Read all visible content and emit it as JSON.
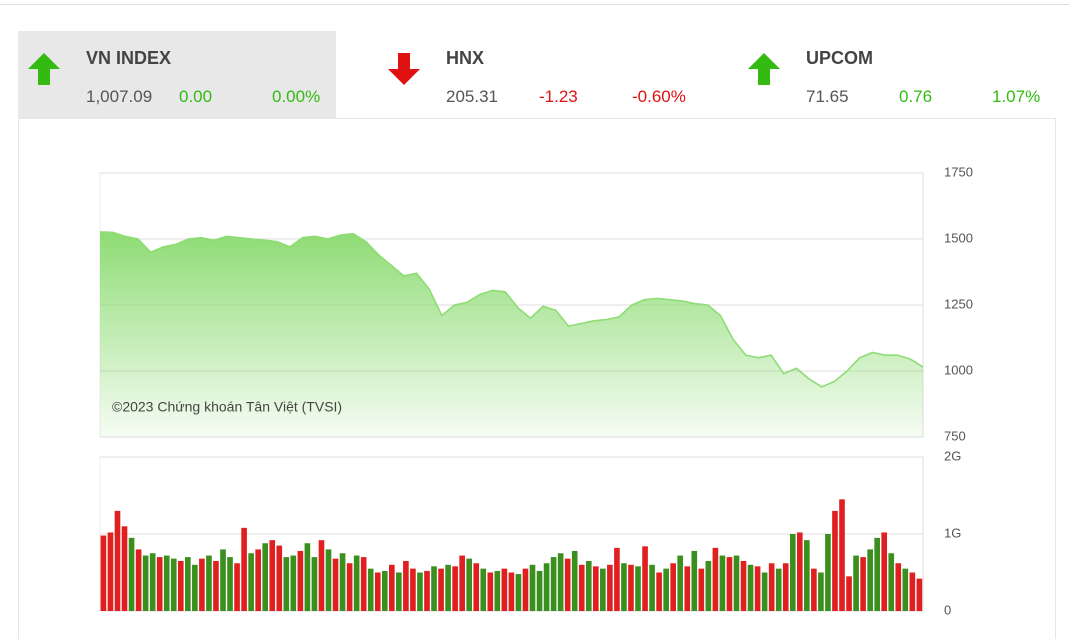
{
  "tickers": [
    {
      "name": "VN INDEX",
      "value": "1,007.09",
      "change": "0.00",
      "percent": "0.00%"
    },
    {
      "name": "HNX",
      "value": "205.31",
      "change": "-1.23",
      "percent": "-0.60%"
    },
    {
      "name": "UPCOM",
      "value": "71.65",
      "change": "0.76",
      "percent": "1.07%"
    }
  ],
  "watermark": "©2023 Chứng khoán Tân Việt (TVSI)",
  "chart_data": [
    {
      "type": "area",
      "color": "#8edc74",
      "ylim": [
        750,
        1750
      ],
      "yticks": [
        750,
        1000,
        1250,
        1500,
        1750
      ],
      "grid": true,
      "values": [
        1527,
        1525,
        1510,
        1500,
        1450,
        1470,
        1480,
        1500,
        1505,
        1495,
        1510,
        1505,
        1500,
        1495,
        1490,
        1470,
        1505,
        1510,
        1500,
        1515,
        1520,
        1490,
        1440,
        1400,
        1360,
        1370,
        1310,
        1210,
        1250,
        1260,
        1290,
        1305,
        1300,
        1240,
        1200,
        1245,
        1230,
        1170,
        1180,
        1190,
        1195,
        1205,
        1250,
        1270,
        1275,
        1270,
        1265,
        1255,
        1250,
        1210,
        1120,
        1060,
        1050,
        1060,
        990,
        1010,
        970,
        940,
        960,
        1000,
        1050,
        1070,
        1060,
        1060,
        1045,
        1015
      ]
    },
    {
      "type": "bar",
      "ylim": [
        0,
        2
      ],
      "yticks": [
        0,
        {
          "value": 1,
          "label": "1G"
        },
        {
          "value": 2,
          "label": "2G"
        }
      ],
      "grid": true,
      "values": [
        0.98,
        1.02,
        1.3,
        1.1,
        0.95,
        0.8,
        0.72,
        0.75,
        0.7,
        0.72,
        0.68,
        0.65,
        0.7,
        0.6,
        0.68,
        0.72,
        0.65,
        0.8,
        0.7,
        0.62,
        1.08,
        0.75,
        0.8,
        0.88,
        0.92,
        0.85,
        0.7,
        0.72,
        0.78,
        0.88,
        0.7,
        0.92,
        0.8,
        0.68,
        0.75,
        0.62,
        0.72,
        0.7,
        0.55,
        0.5,
        0.52,
        0.6,
        0.5,
        0.65,
        0.55,
        0.5,
        0.52,
        0.58,
        0.55,
        0.6,
        0.58,
        0.72,
        0.68,
        0.62,
        0.55,
        0.5,
        0.52,
        0.55,
        0.5,
        0.48,
        0.55,
        0.6,
        0.52,
        0.62,
        0.7,
        0.75,
        0.68,
        0.78,
        0.6,
        0.65,
        0.58,
        0.55,
        0.6,
        0.82,
        0.62,
        0.6,
        0.58,
        0.84,
        0.6,
        0.5,
        0.55,
        0.62,
        0.72,
        0.58,
        0.78,
        0.55,
        0.65,
        0.82,
        0.72,
        0.7,
        0.72,
        0.65,
        0.6,
        0.58,
        0.5,
        0.62,
        0.55,
        0.62,
        1.0,
        1.02,
        0.92,
        0.55,
        0.5,
        1.0,
        1.3,
        1.45,
        0.45,
        0.72,
        0.7,
        0.8,
        0.95,
        1.02,
        0.75,
        0.62,
        0.55,
        0.5,
        0.42
      ],
      "colors": [
        "#e02020",
        "#e02020",
        "#e02020",
        "#e02020",
        "#3a8f1e",
        "#e02020",
        "#3a8f1e",
        "#3a8f1e",
        "#e02020",
        "#3a8f1e",
        "#3a8f1e",
        "#e02020",
        "#3a8f1e",
        "#3a8f1e",
        "#e02020",
        "#3a8f1e",
        "#e02020",
        "#3a8f1e",
        "#3a8f1e",
        "#e02020",
        "#e02020",
        "#3a8f1e",
        "#e02020",
        "#3a8f1e",
        "#e02020",
        "#e02020",
        "#3a8f1e",
        "#3a8f1e",
        "#e02020",
        "#3a8f1e",
        "#3a8f1e",
        "#e02020",
        "#3a8f1e",
        "#e02020",
        "#3a8f1e",
        "#e02020",
        "#3a8f1e",
        "#e02020",
        "#3a8f1e",
        "#e02020",
        "#3a8f1e",
        "#e02020",
        "#3a8f1e",
        "#e02020",
        "#e02020",
        "#3a8f1e",
        "#e02020",
        "#3a8f1e",
        "#e02020",
        "#3a8f1e",
        "#e02020",
        "#e02020",
        "#3a8f1e",
        "#e02020",
        "#3a8f1e",
        "#e02020",
        "#3a8f1e",
        "#e02020",
        "#e02020",
        "#3a8f1e",
        "#e02020",
        "#3a8f1e",
        "#3a8f1e",
        "#3a8f1e",
        "#3a8f1e",
        "#3a8f1e",
        "#e02020",
        "#3a8f1e",
        "#e02020",
        "#3a8f1e",
        "#e02020",
        "#3a8f1e",
        "#e02020",
        "#e02020",
        "#3a8f1e",
        "#e02020",
        "#3a8f1e",
        "#e02020",
        "#3a8f1e",
        "#e02020",
        "#3a8f1e",
        "#e02020",
        "#3a8f1e",
        "#e02020",
        "#3a8f1e",
        "#e02020",
        "#3a8f1e",
        "#e02020",
        "#3a8f1e",
        "#e02020",
        "#3a8f1e",
        "#e02020",
        "#3a8f1e",
        "#e02020",
        "#3a8f1e",
        "#e02020",
        "#3a8f1e",
        "#e02020",
        "#3a8f1e",
        "#e02020",
        "#3a8f1e",
        "#e02020",
        "#3a8f1e",
        "#3a8f1e",
        "#e02020",
        "#e02020",
        "#e02020",
        "#3a8f1e",
        "#e02020",
        "#3a8f1e",
        "#3a8f1e",
        "#e02020",
        "#3a8f1e",
        "#e02020",
        "#3a8f1e",
        "#e02020",
        "#e02020"
      ]
    }
  ]
}
